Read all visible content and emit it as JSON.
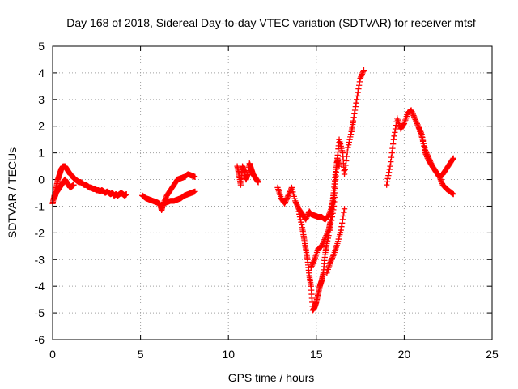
{
  "chart_data": {
    "type": "scatter",
    "title": "Day 168 of 2018, Sidereal Day-to-day VTEC variation (SDTVAR) for receiver mtsf",
    "xlabel": "GPS time / hours",
    "ylabel": "SDTVAR / TECUs",
    "xlim": [
      0,
      25
    ],
    "ylim": [
      -6,
      5
    ],
    "xticks": [
      0,
      5,
      10,
      15,
      20,
      25
    ],
    "yticks": [
      -6,
      -5,
      -4,
      -3,
      -2,
      -1,
      0,
      1,
      2,
      3,
      4,
      5
    ],
    "grid": true,
    "marker": "plus",
    "color": "#ff0000",
    "series": [
      {
        "x": [
          0.0,
          0.1,
          0.2,
          0.3,
          0.4,
          0.5,
          0.6,
          0.7,
          0.8,
          0.9,
          1.0,
          1.1,
          1.2,
          1.3,
          1.4,
          1.5,
          1.6,
          1.7,
          1.8,
          1.9,
          2.0,
          2.1,
          2.2,
          2.3,
          2.4,
          2.5,
          2.6,
          2.7,
          2.8,
          2.9,
          3.0,
          3.1,
          3.2,
          3.3,
          3.4,
          3.5,
          3.6,
          3.7,
          3.8,
          3.9,
          4.0,
          4.1,
          4.2
        ],
        "y": [
          -0.9,
          -0.6,
          -0.3,
          0.0,
          0.2,
          0.4,
          0.5,
          0.5,
          0.4,
          0.3,
          0.2,
          0.15,
          0.05,
          0.0,
          -0.05,
          -0.1,
          -0.1,
          -0.15,
          -0.2,
          -0.2,
          -0.25,
          -0.3,
          -0.3,
          -0.35,
          -0.35,
          -0.4,
          -0.4,
          -0.45,
          -0.4,
          -0.45,
          -0.5,
          -0.45,
          -0.5,
          -0.55,
          -0.5,
          -0.6,
          -0.55,
          -0.6,
          -0.55,
          -0.5,
          -0.55,
          -0.6,
          -0.55
        ]
      },
      {
        "x": [
          0.1,
          0.2,
          0.3,
          0.4,
          0.5,
          0.6,
          0.7,
          0.8,
          0.9,
          1.0,
          1.1,
          1.2
        ],
        "y": [
          -0.7,
          -0.5,
          -0.4,
          -0.3,
          -0.2,
          -0.1,
          0.0,
          -0.1,
          -0.2,
          -0.3,
          -0.25,
          -0.2
        ]
      },
      {
        "x": [
          5.1,
          5.3,
          5.5,
          5.7,
          5.9,
          6.1,
          6.2,
          6.3,
          6.5,
          6.7,
          6.9,
          7.1,
          7.3,
          7.5,
          7.7,
          7.9,
          8.1
        ],
        "y": [
          -0.6,
          -0.7,
          -0.75,
          -0.8,
          -0.85,
          -0.9,
          -1.15,
          -0.9,
          -0.85,
          -0.8,
          -0.8,
          -0.75,
          -0.7,
          -0.6,
          -0.55,
          -0.5,
          -0.45
        ]
      },
      {
        "x": [
          6.3,
          6.5,
          6.7,
          6.9,
          7.1,
          7.3,
          7.5,
          7.7,
          7.9,
          8.1
        ],
        "y": [
          -0.9,
          -0.6,
          -0.4,
          -0.2,
          0.0,
          0.05,
          0.1,
          0.2,
          0.15,
          0.1
        ]
      },
      {
        "x": [
          10.5,
          10.6,
          10.7,
          10.8,
          10.9,
          11.0,
          11.1,
          11.2,
          11.3,
          11.4,
          11.5,
          11.6,
          11.7
        ],
        "y": [
          0.5,
          0.2,
          -0.2,
          0.5,
          0.3,
          0.0,
          0.2,
          0.6,
          0.4,
          0.2,
          0.1,
          0.0,
          -0.1
        ]
      },
      {
        "x": [
          12.8,
          13.0,
          13.2,
          13.4,
          13.6,
          13.8,
          14.0,
          14.2,
          14.4,
          14.6,
          14.7,
          14.9,
          15.1,
          15.3,
          15.5,
          15.7,
          15.9,
          16.0
        ],
        "y": [
          -0.3,
          -0.7,
          -0.9,
          -0.6,
          -0.3,
          -0.8,
          -1.1,
          -1.3,
          -1.5,
          -1.2,
          -1.3,
          -1.35,
          -1.4,
          -1.4,
          -1.5,
          -1.35,
          -1.0,
          -0.6
        ]
      },
      {
        "x": [
          14.0,
          14.2,
          14.3,
          14.4,
          14.5,
          14.6,
          14.7,
          14.8,
          14.9,
          15.0,
          15.1,
          15.2,
          15.3,
          15.4,
          15.5,
          15.6,
          15.8,
          16.0,
          16.1,
          16.2,
          16.3,
          16.5,
          16.6,
          16.8,
          17.0,
          17.1,
          17.3,
          17.5,
          17.7
        ],
        "y": [
          -1.2,
          -1.8,
          -2.2,
          -2.6,
          -3.0,
          -3.6,
          -4.0,
          -4.9,
          -4.8,
          -4.6,
          -4.3,
          -4.0,
          -3.8,
          -3.5,
          -2.8,
          -2.4,
          -1.8,
          -1.0,
          0.0,
          0.8,
          1.5,
          1.0,
          0.2,
          1.2,
          1.8,
          2.2,
          3.0,
          3.8,
          4.1
        ]
      },
      {
        "x": [
          14.7,
          14.9,
          15.1,
          15.3,
          15.5,
          15.7,
          15.8,
          15.9,
          16.0,
          16.1,
          16.2,
          16.3
        ],
        "y": [
          -3.3,
          -3.0,
          -2.6,
          -2.5,
          -2.2,
          -1.9,
          -1.6,
          -1.0,
          -0.4,
          0.3,
          0.8,
          0.5
        ]
      },
      {
        "x": [
          15.6,
          15.8,
          16.0,
          16.2,
          16.4,
          16.6
        ],
        "y": [
          -3.5,
          -3.1,
          -2.8,
          -2.4,
          -1.9,
          -1.1
        ]
      },
      {
        "x": [
          19.0,
          19.2,
          19.4,
          19.6,
          19.8,
          20.0,
          20.2,
          20.4,
          20.6,
          20.8,
          21.0,
          21.2,
          21.4,
          21.6,
          21.8,
          22.0,
          22.2,
          22.4,
          22.6,
          22.8
        ],
        "y": [
          -0.2,
          0.5,
          1.5,
          2.3,
          1.9,
          2.1,
          2.5,
          2.6,
          2.3,
          2.0,
          1.7,
          1.0,
          0.7,
          0.5,
          0.3,
          0.1,
          0.2,
          0.4,
          0.6,
          0.8
        ]
      },
      {
        "x": [
          20.8,
          21.0,
          21.2,
          21.4,
          21.6,
          21.8,
          22.0,
          22.2,
          22.4,
          22.6,
          22.8
        ],
        "y": [
          2.0,
          1.6,
          1.1,
          0.8,
          0.5,
          0.3,
          0.1,
          -0.2,
          -0.35,
          -0.45,
          -0.55
        ]
      }
    ]
  }
}
